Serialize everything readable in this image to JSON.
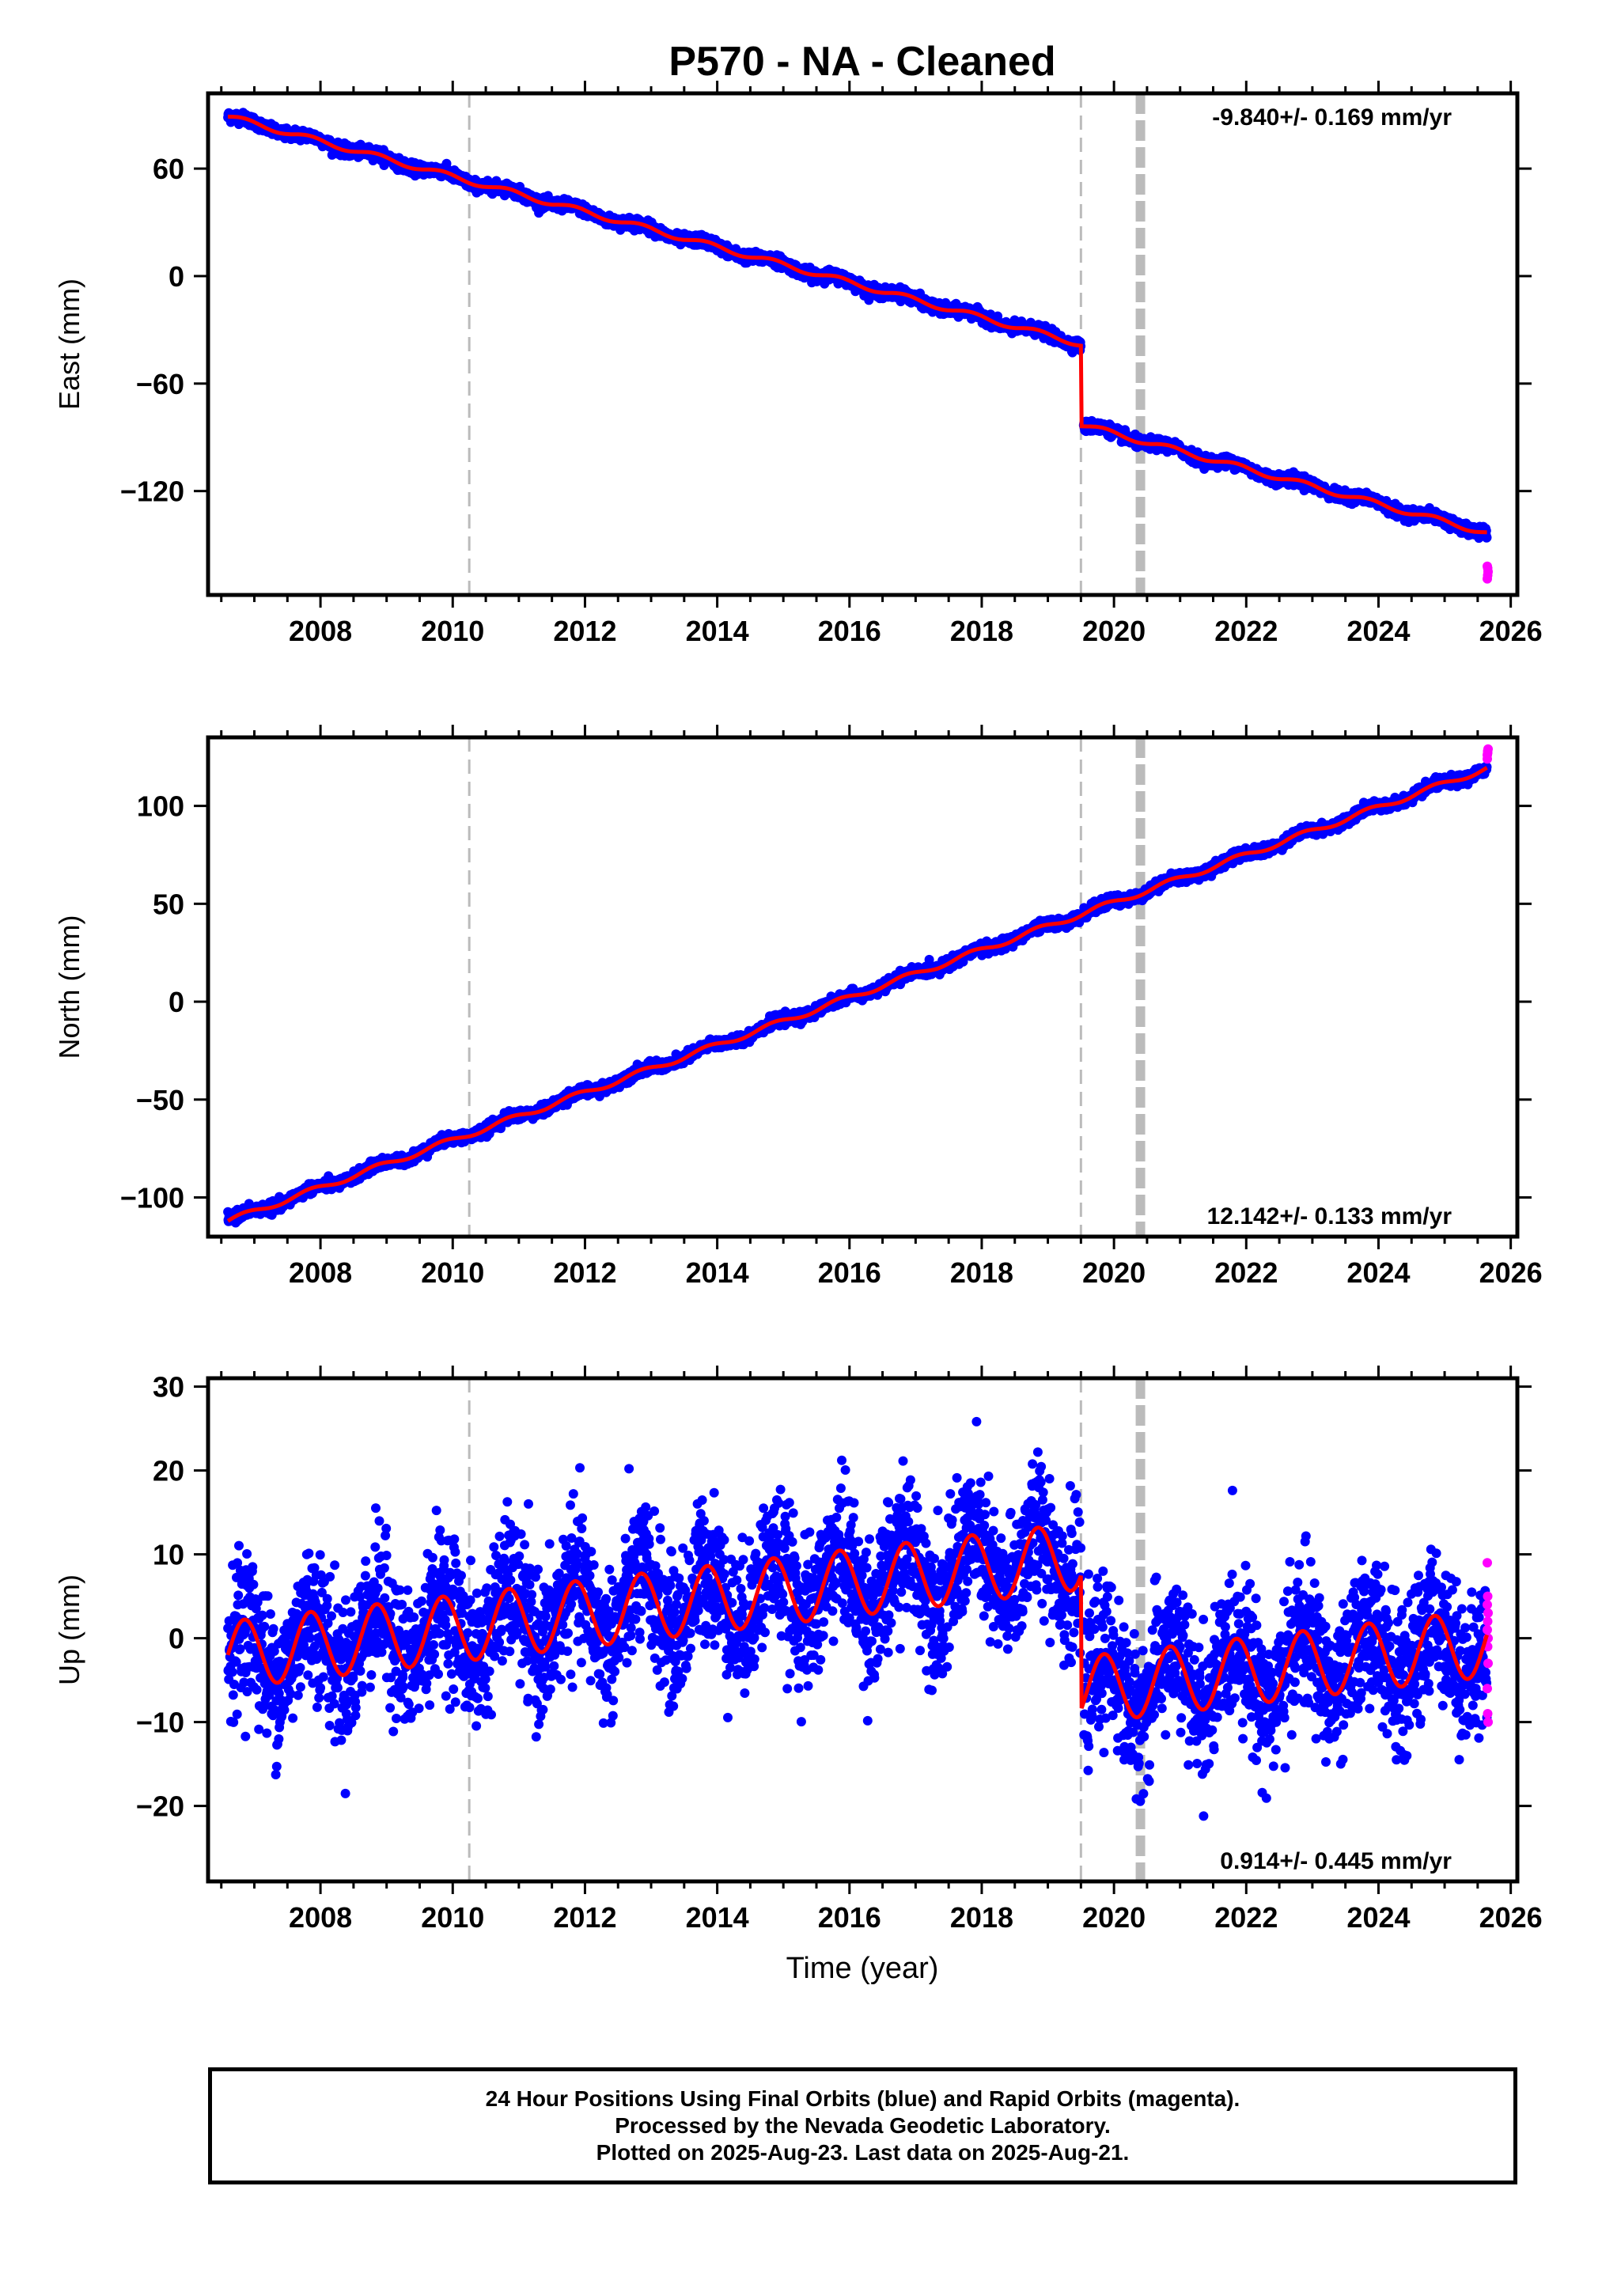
{
  "title": "P570  - NA - Cleaned",
  "xlabel": "Time (year)",
  "colors": {
    "final_orbits": "#0000ff",
    "rapid_orbits": "#ff00ff",
    "model": "#ff0000",
    "event_lines": "#bbbbbb",
    "frame": "#000000"
  },
  "chart_data": [
    {
      "type": "scatter",
      "panel": "east",
      "ylabel": "East (mm)",
      "rate_label": "-9.840+/- 0.169 mm/yr",
      "rate_position": "top-right",
      "xlim": [
        2006.3,
        2026.1
      ],
      "ylim": [
        -178,
        102
      ],
      "xticks": [
        2008,
        2010,
        2012,
        2014,
        2016,
        2018,
        2020,
        2022,
        2024,
        2026
      ],
      "yticks": [
        60,
        0,
        -60,
        -120
      ],
      "ytick_labels": [
        "60",
        "0",
        "−60",
        "−120"
      ],
      "events": [
        {
          "x": 2010.25,
          "style": "dashed"
        },
        {
          "x": 2019.5,
          "style": "dashed"
        },
        {
          "x": 2020.4,
          "style": "thick-dashed"
        }
      ],
      "rate_mm_yr": -9.84,
      "intercept_mm": 89,
      "start_year": 2006.6,
      "end_year": 2025.64,
      "steps": [
        {
          "x": 2019.5,
          "offset": -45
        }
      ],
      "seasonal_amplitude": 1.5,
      "scatter_sd": 1.5,
      "rapid_values": [
        -162,
        -167,
        -165,
        -169,
        -163
      ]
    },
    {
      "type": "scatter",
      "panel": "north",
      "ylabel": "North (mm)",
      "rate_label": "12.142+/- 0.133 mm/yr",
      "rate_position": "bottom-right",
      "xlim": [
        2006.3,
        2026.1
      ],
      "ylim": [
        -120,
        135
      ],
      "xticks": [
        2008,
        2010,
        2012,
        2014,
        2016,
        2018,
        2020,
        2022,
        2024,
        2026
      ],
      "yticks": [
        100,
        50,
        0,
        -50,
        -100
      ],
      "ytick_labels": [
        "100",
        "50",
        "0",
        "−50",
        "−100"
      ],
      "events": [
        {
          "x": 2010.25,
          "style": "dashed"
        },
        {
          "x": 2019.5,
          "style": "dashed"
        },
        {
          "x": 2020.4,
          "style": "thick-dashed"
        }
      ],
      "rate_mm_yr": 12.142,
      "intercept_mm": -112,
      "start_year": 2006.6,
      "end_year": 2025.64,
      "steps": [],
      "seasonal_amplitude": 1.4,
      "scatter_sd": 1.3,
      "rapid_values": [
        124,
        127,
        129,
        126,
        128
      ]
    },
    {
      "type": "scatter",
      "panel": "up",
      "ylabel": "Up (mm)",
      "rate_label": "0.914+/- 0.445 mm/yr",
      "rate_position": "bottom-right",
      "xlim": [
        2006.3,
        2026.1
      ],
      "ylim": [
        -29,
        31
      ],
      "xticks": [
        2008,
        2010,
        2012,
        2014,
        2016,
        2018,
        2020,
        2022,
        2024,
        2026
      ],
      "yticks": [
        30,
        20,
        10,
        0,
        -10,
        -20
      ],
      "ytick_labels": [
        "30",
        "20",
        "10",
        "0",
        "−10",
        "−20"
      ],
      "events": [
        {
          "x": 2010.25,
          "style": "dashed"
        },
        {
          "x": 2019.5,
          "style": "dashed"
        },
        {
          "x": 2020.4,
          "style": "thick-dashed"
        }
      ],
      "rate_mm_yr": 0.914,
      "intercept_mm": -2,
      "start_year": 2006.6,
      "end_year": 2025.64,
      "steps": [
        {
          "x": 2019.5,
          "offset": -16
        }
      ],
      "seasonal_amplitude": 4,
      "scatter_sd": 4.2,
      "rapid_values": [
        9,
        5,
        3,
        1,
        -1,
        -3,
        -6,
        -9,
        -10,
        4,
        2,
        0
      ]
    }
  ],
  "footer": {
    "line1": "24 Hour Positions Using Final Orbits (blue) and Rapid Orbits (magenta).",
    "line2": "Processed by the Nevada Geodetic Laboratory.",
    "line3": "Plotted on 2025-Aug-23. Last data on 2025-Aug-21."
  }
}
